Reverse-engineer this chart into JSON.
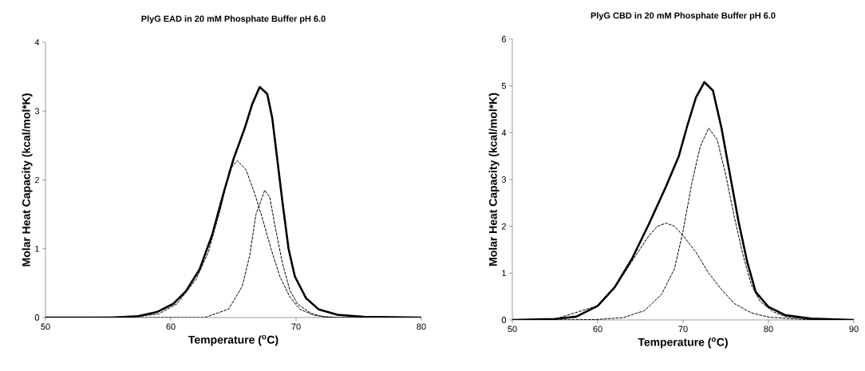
{
  "chart_data": [
    {
      "type": "line",
      "title": "PlyG EAD in 20 mM Phosphate Buffer pH 6.0",
      "xlabel": "Temperature ($^{o}$C)",
      "ylabel": "Molar Heat Capacity (kcal/mol*K)",
      "xlim": [
        50,
        80
      ],
      "ylim": [
        0,
        4
      ],
      "xticks": [
        50,
        60,
        70,
        80
      ],
      "yticks": [
        0,
        1,
        2,
        3,
        4
      ],
      "grid": false,
      "marker": "none",
      "series": [
        {
          "color": "#000000",
          "line_style": "solid",
          "x": [
            50,
            55.3,
            57.4,
            58.9,
            60.2,
            61.2,
            62.3,
            63.3,
            64.2,
            65.0,
            65.9,
            66.5,
            67.1,
            67.7,
            68.1,
            68.5,
            68.9,
            69.4,
            69.9,
            70.8,
            71.8,
            73.3,
            75.4,
            80
          ],
          "values": [
            0,
            0,
            0.02,
            0.08,
            0.2,
            0.38,
            0.7,
            1.2,
            1.8,
            2.3,
            2.75,
            3.1,
            3.35,
            3.25,
            2.9,
            2.3,
            1.7,
            1.0,
            0.6,
            0.28,
            0.12,
            0.04,
            0.01,
            0
          ]
        },
        {
          "color": "#000000",
          "line_style": "dashed",
          "x": [
            50,
            57,
            59,
            60.5,
            62,
            63,
            64,
            64.7,
            65.3,
            66,
            66.7,
            67.3,
            68,
            68.7,
            69.5,
            70.3,
            71.5,
            73,
            80
          ],
          "values": [
            0,
            0.01,
            0.05,
            0.2,
            0.55,
            0.95,
            1.6,
            2.15,
            2.28,
            2.15,
            1.8,
            1.45,
            1.0,
            0.6,
            0.3,
            0.12,
            0.03,
            0,
            0
          ]
        },
        {
          "color": "#000000",
          "line_style": "dashed",
          "x": [
            50,
            62.7,
            64.6,
            65.7,
            66.3,
            66.8,
            67.5,
            67.9,
            68.3,
            68.9,
            69.5,
            70.1,
            71.2,
            72.2,
            73.3,
            80
          ],
          "values": [
            0,
            0,
            0.12,
            0.45,
            0.9,
            1.5,
            1.85,
            1.75,
            1.35,
            0.8,
            0.4,
            0.2,
            0.06,
            0.01,
            0,
            0
          ]
        }
      ]
    },
    {
      "type": "line",
      "title": "PlyG CBD in 20 mM Phosphate Buffer pH 6.0",
      "xlabel": "Temperature ($^{o}$C)",
      "ylabel": "Molar Heat Capacity (kcal/mol*K)",
      "xlim": [
        50,
        90
      ],
      "ylim": [
        0,
        6
      ],
      "xticks": [
        50,
        60,
        70,
        80,
        90
      ],
      "yticks": [
        0,
        1,
        2,
        3,
        4,
        5,
        6
      ],
      "grid": false,
      "marker": "none",
      "series": [
        {
          "color": "#000000",
          "line_style": "solid",
          "x": [
            50,
            55,
            57.5,
            60,
            62,
            64,
            66,
            68,
            69.5,
            70.5,
            71.5,
            72.5,
            73.5,
            74.5,
            75.5,
            76.5,
            77.5,
            78.5,
            80,
            82,
            85,
            90
          ],
          "values": [
            0,
            0.02,
            0.07,
            0.3,
            0.7,
            1.3,
            2.05,
            2.85,
            3.5,
            4.15,
            4.75,
            5.08,
            4.9,
            4.1,
            3.1,
            2.1,
            1.25,
            0.6,
            0.28,
            0.1,
            0.03,
            0
          ]
        },
        {
          "color": "#000000",
          "line_style": "dashed",
          "x": [
            50,
            55,
            60,
            62,
            64,
            66,
            67,
            68,
            69,
            70,
            71.5,
            73,
            74.5,
            76,
            78,
            80,
            84,
            88,
            90
          ],
          "values": [
            0,
            0.02,
            0.3,
            0.68,
            1.25,
            1.8,
            2.0,
            2.07,
            2.0,
            1.8,
            1.45,
            1.0,
            0.65,
            0.35,
            0.15,
            0.06,
            0.01,
            0,
            0
          ]
        },
        {
          "color": "#000000",
          "line_style": "dashed",
          "x": [
            50,
            55,
            60,
            63,
            65.5,
            67.5,
            69,
            70,
            71,
            72,
            73,
            74,
            75,
            76,
            77,
            78,
            79,
            80.5,
            82,
            85,
            88,
            90
          ],
          "values": [
            0,
            0,
            0.01,
            0.05,
            0.2,
            0.55,
            1.1,
            1.9,
            2.9,
            3.7,
            4.1,
            3.85,
            3.1,
            2.2,
            1.4,
            0.75,
            0.4,
            0.18,
            0.07,
            0.01,
            0,
            0
          ]
        }
      ]
    }
  ]
}
